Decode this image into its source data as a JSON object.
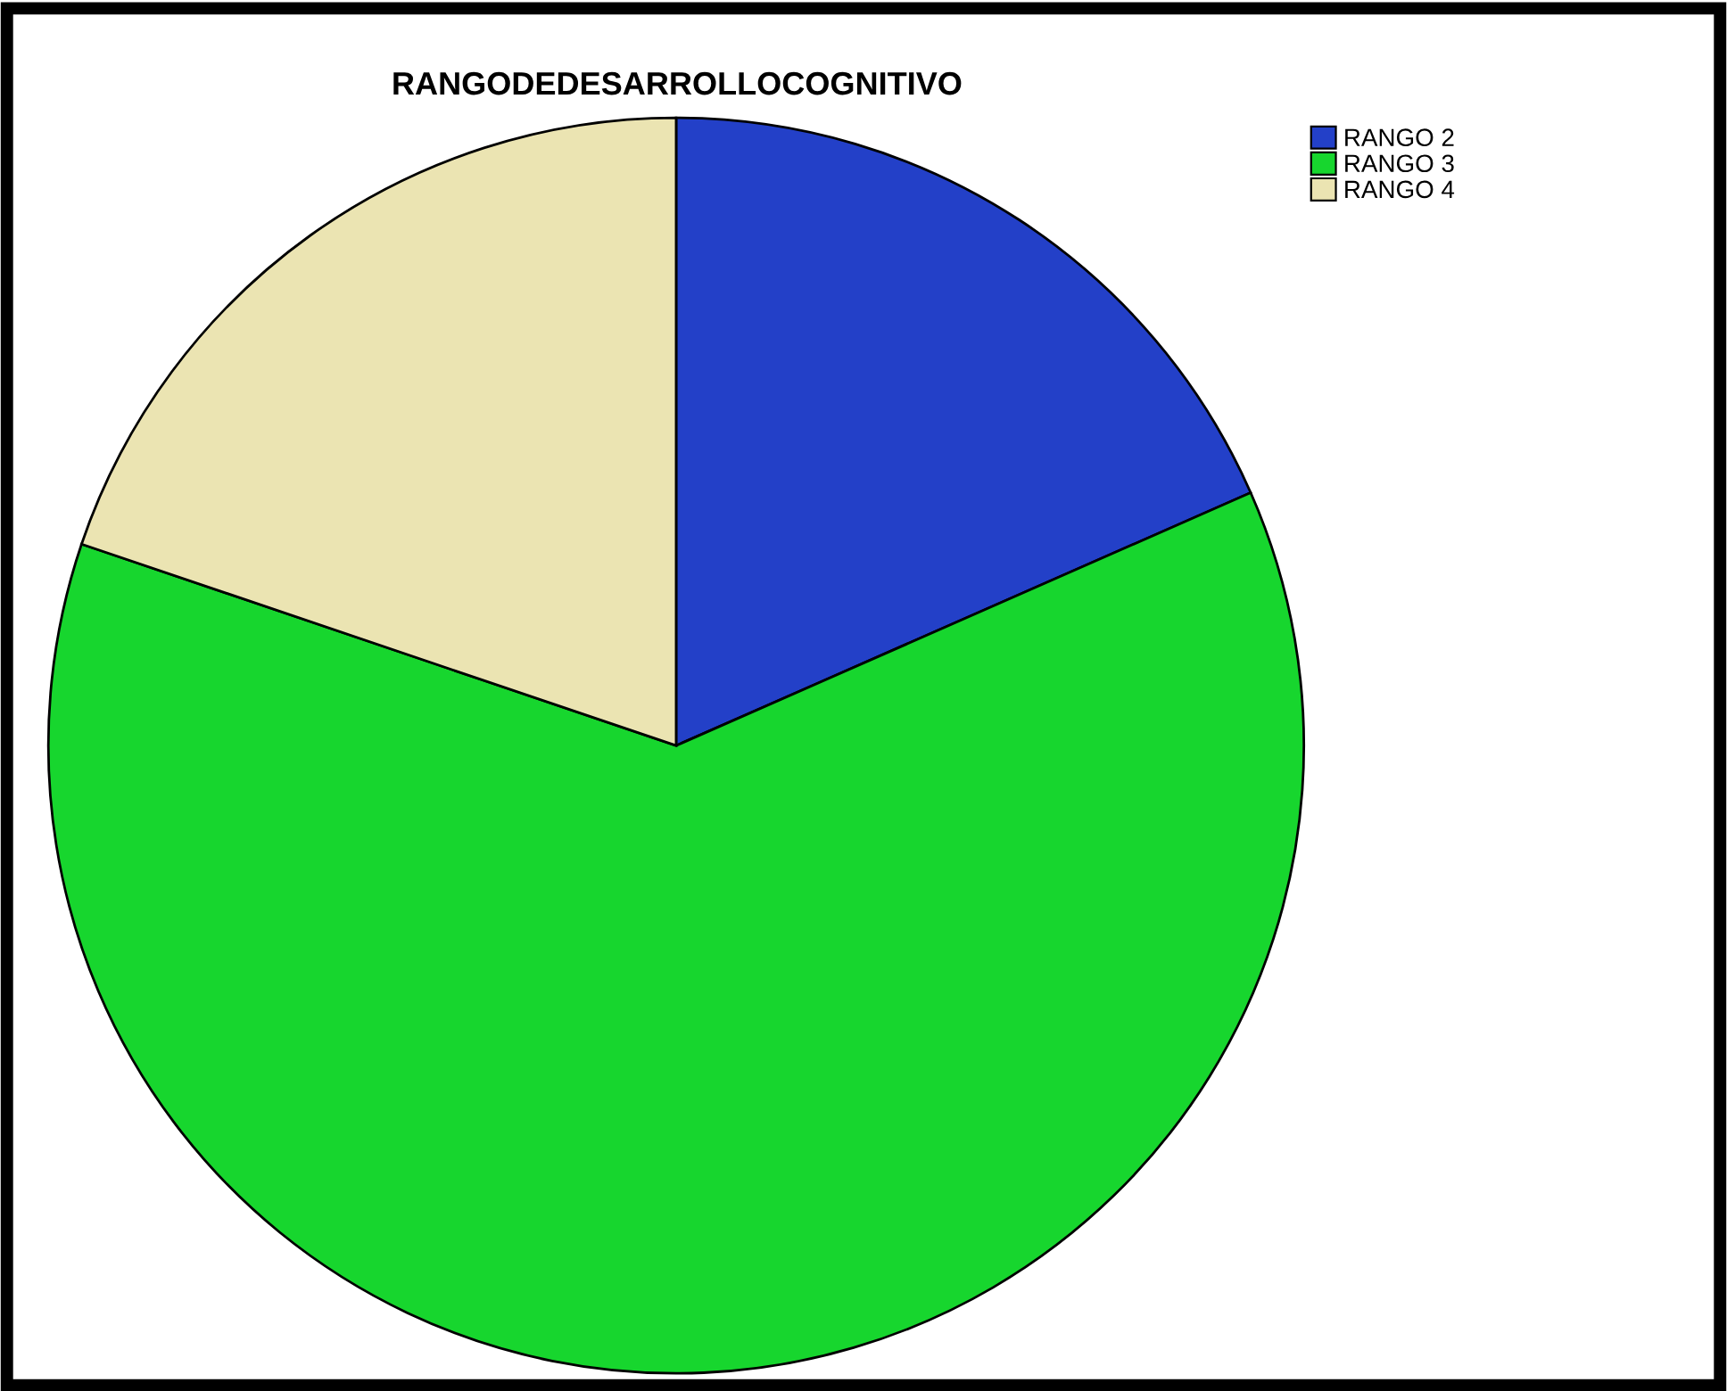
{
  "chart_data": {
    "type": "pie",
    "title": "RANGODEDESARROLLOCOGNITIVO",
    "categories": [
      "RANGO 2",
      "RANGO 3",
      "RANGO 4"
    ],
    "values": [
      18.4,
      61.8,
      19.8
    ],
    "colors": [
      "#2340c8",
      "#17d62e",
      "#ebe4b2"
    ],
    "legend": "top right"
  }
}
